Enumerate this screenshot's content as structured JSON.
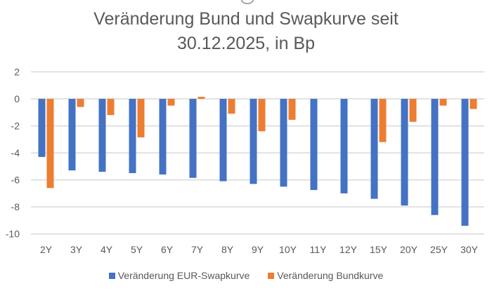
{
  "chart_data": {
    "type": "bar",
    "title_line1": "Veränderung Bund und Swapkurve seit",
    "title_line2": "30.12.2025, in Bp",
    "xlabel": "",
    "ylabel": "",
    "ylim": [
      -10,
      2
    ],
    "yticks": [
      2,
      0,
      -2,
      -4,
      -6,
      -8,
      -10
    ],
    "grid": true,
    "legend_position": "bottom",
    "categories": [
      "2Y",
      "3Y",
      "4Y",
      "5Y",
      "6Y",
      "7Y",
      "8Y",
      "9Y",
      "10Y",
      "11Y",
      "12Y",
      "15Y",
      "20Y",
      "25Y",
      "30Y"
    ],
    "series": [
      {
        "name": "Veränderung EUR-Swapkurve",
        "color": "#4472C4",
        "values": [
          -4.3,
          -5.3,
          -5.4,
          -5.5,
          -5.6,
          -5.85,
          -6.1,
          -6.3,
          -6.5,
          -6.75,
          -7.0,
          -7.4,
          -7.9,
          -8.6,
          -9.4
        ]
      },
      {
        "name": "Veränderung Bundkurve",
        "color": "#ED7D31",
        "values": [
          -6.6,
          -0.6,
          -1.2,
          -2.85,
          -0.5,
          0.15,
          -1.1,
          -2.4,
          -1.55,
          null,
          null,
          -3.2,
          -1.7,
          -0.5,
          -0.75
        ]
      }
    ]
  }
}
